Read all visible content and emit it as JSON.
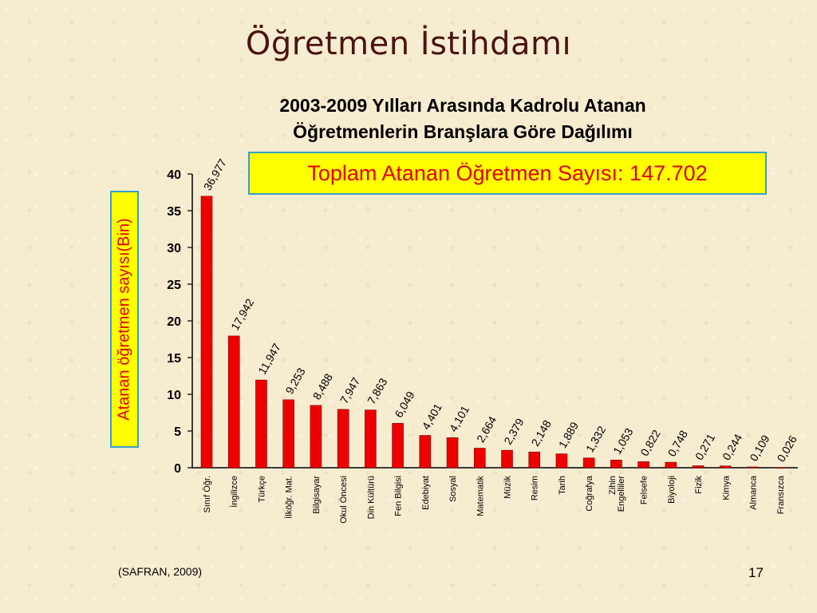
{
  "slide": {
    "title": "Öğretmen İstihdamı",
    "subtitle_line1": "2003-2009 Yılları Arasında Kadrolu Atanan",
    "subtitle_line2": "Öğretmenlerin Branşlara Göre Dağılımı",
    "total_box": "Toplam Atanan Öğretmen Sayısı: 147.702",
    "source": "(SAFRAN, 2009)",
    "page_number": "17"
  },
  "colors": {
    "bar": "#ee0000",
    "bar_edge": "#7a0000",
    "title": "#4a1410",
    "highlight_box": "#ffff00",
    "highlight_text": "#e00000",
    "box_border": "#3aa0c8"
  },
  "chart_data": {
    "type": "bar",
    "title": "2003-2009 Yılları Arasında Kadrolu Atanan Öğretmenlerin Branşlara Göre Dağılımı",
    "ylabel": "Atanan öğretmen sayısı(Bin)",
    "xlabel": "",
    "ylim": [
      0,
      40
    ],
    "yticks": [
      0,
      5,
      10,
      15,
      20,
      25,
      30,
      35,
      40
    ],
    "grid": false,
    "categories": [
      "Sınıf Öğr.",
      "İngilizce",
      "Türkçe",
      "İlköğr. Mat.",
      "Bilgisayar",
      "Okul Öncesi",
      "Din Kültürü",
      "Fen Bilgisi",
      "Edebiyat",
      "Sosyal",
      "Matematik",
      "Müzik",
      "Resim",
      "Tarih",
      "Coğrafya",
      "Zihin Engelliler",
      "Felsefe",
      "Biyoloji",
      "Fizik",
      "Kimya",
      "Almanca",
      "Fransızca"
    ],
    "values": [
      36.977,
      17.942,
      11.947,
      9.253,
      8.488,
      7.947,
      7.863,
      6.049,
      4.401,
      4.101,
      2.664,
      2.379,
      2.148,
      1.889,
      1.332,
      1.053,
      0.822,
      0.748,
      0.271,
      0.244,
      0.109,
      0.026
    ],
    "data_labels": [
      "36,977",
      "17,942",
      "11,947",
      "9,253",
      "8,488",
      "7,947",
      "7,863",
      "6,049",
      "4,401",
      "4,101",
      "2,664",
      "2,379",
      "2,148",
      "1,889",
      "1,332",
      "1,053",
      "0,822",
      "0,748",
      "0,271",
      "0,244",
      "0,109",
      "0,026"
    ]
  }
}
